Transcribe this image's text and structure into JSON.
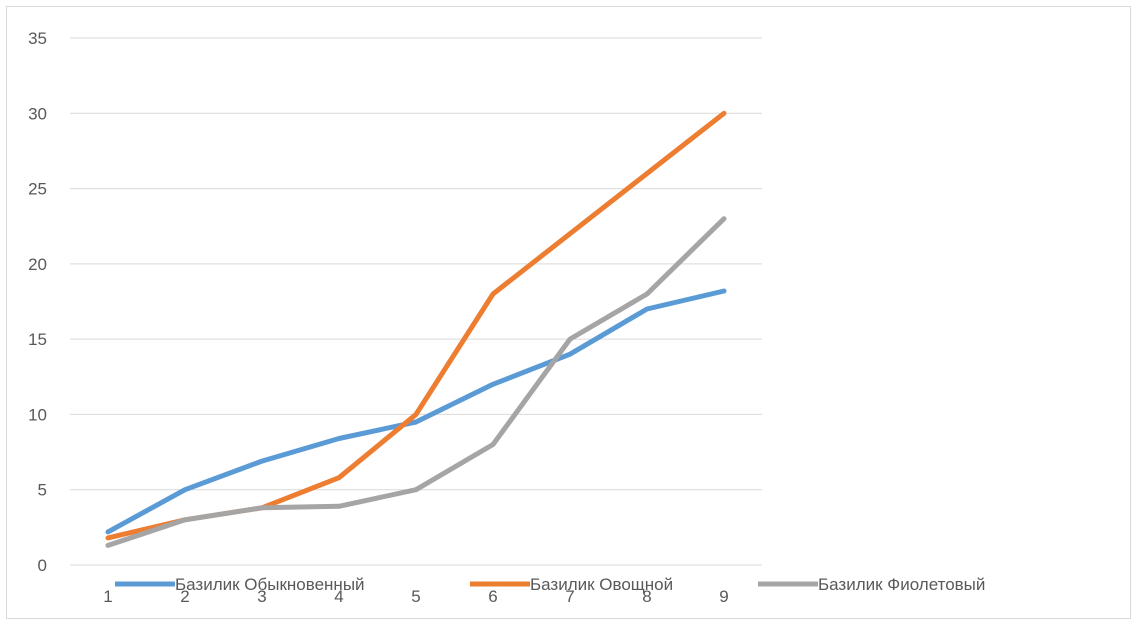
{
  "chart_data": {
    "type": "line",
    "title": "",
    "xlabel": "",
    "ylabel": "",
    "categories": [
      "1",
      "2",
      "3",
      "4",
      "5",
      "6",
      "7",
      "8",
      "9"
    ],
    "ylim": [
      0,
      35
    ],
    "yticks": [
      0,
      5,
      10,
      15,
      20,
      25,
      30,
      35
    ],
    "grid": true,
    "legend_position": "bottom",
    "series": [
      {
        "name": "Базилик Обыкновенный",
        "color": "#5b9bd5",
        "values": [
          2.2,
          5.0,
          6.9,
          8.4,
          9.5,
          12.0,
          14.0,
          17.0,
          18.2
        ]
      },
      {
        "name": "Базилик Овощной",
        "color": "#ed7d31",
        "values": [
          1.8,
          3.0,
          3.8,
          5.8,
          10.0,
          18.0,
          22.0,
          26.0,
          30.0
        ]
      },
      {
        "name": "Базилик Фиолетовый",
        "color": "#a5a5a5",
        "values": [
          1.3,
          3.0,
          3.8,
          3.9,
          5.0,
          8.0,
          15.0,
          18.0,
          23.0
        ]
      }
    ]
  }
}
